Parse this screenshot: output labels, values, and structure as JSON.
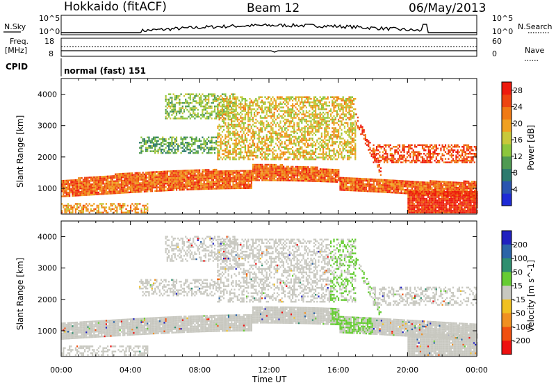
{
  "header": {
    "title_left": "Hokkaido (fitACF)",
    "title_center": "Beam 12",
    "title_right": "06/May/2013"
  },
  "top_panels": {
    "nsky_label": "N.Sky",
    "nsky_ticks": [
      "10^5",
      "10^0"
    ],
    "nsearch_label": "N.Search",
    "nsearch_ticks": [
      "10^5",
      "10^0"
    ],
    "freq_label": "Freq.",
    "freq_unit": "[MHz]",
    "freq_ticks": [
      "18",
      "8"
    ],
    "nave_label": "Nave",
    "nave_ticks": [
      "60",
      "0"
    ],
    "cpid_label": "CPID",
    "cpid_text": "normal (fast) 151"
  },
  "chart_data": [
    {
      "type": "heatmap",
      "name": "power",
      "ylabel": "Slant Range [km]",
      "xlabel": "Time UT",
      "x_ticks": [
        "00:00",
        "04:00",
        "08:00",
        "12:00",
        "16:00",
        "20:00",
        "00:00"
      ],
      "xlim_hours": [
        0,
        24
      ],
      "y_ticks": [
        1000,
        2000,
        3000,
        4000
      ],
      "ylim_km": [
        180,
        4500
      ],
      "colorbar": {
        "label": "Power [dB]",
        "ticks": [
          4,
          8,
          12,
          16,
          20,
          24,
          28
        ],
        "range": [
          0,
          30
        ],
        "colors": [
          "#1e2bd6",
          "#2a55b0",
          "#2d7a6e",
          "#4f9a52",
          "#8cc63c",
          "#c8c83a",
          "#f0a020",
          "#f07a14",
          "#ee4410",
          "#ee1a0e"
        ]
      },
      "bands": [
        {
          "t0": 0,
          "t1": 24,
          "r0": 800,
          "r1": 1500,
          "level": 0.82,
          "trend": "main"
        },
        {
          "t0": 6,
          "t1": 10,
          "r0": 3200,
          "r1": 4000,
          "level": 0.45,
          "trend": "upper"
        },
        {
          "t0": 4.5,
          "t1": 9,
          "r0": 2100,
          "r1": 2600,
          "level": 0.35,
          "trend": "mid"
        },
        {
          "t0": 9,
          "t1": 17,
          "r0": 1900,
          "r1": 3900,
          "level": 0.6,
          "trend": "scatter"
        },
        {
          "t0": 17,
          "t1": 18.5,
          "r0": 1300,
          "r1": 3000,
          "level": 0.9,
          "trend": "arc"
        },
        {
          "t0": 18,
          "t1": 24,
          "r0": 1800,
          "r1": 2400,
          "level": 0.88,
          "trend": "upper-right"
        },
        {
          "t0": 20,
          "t1": 24,
          "r0": 200,
          "r1": 900,
          "level": 0.95,
          "trend": "low"
        },
        {
          "t0": 0,
          "t1": 5,
          "r0": 200,
          "r1": 500,
          "level": 0.7,
          "trend": "ground"
        }
      ]
    },
    {
      "type": "heatmap",
      "name": "velocity",
      "ylabel": "Slant Range [km]",
      "xlabel": "Time UT",
      "x_ticks": [
        "00:00",
        "04:00",
        "08:00",
        "12:00",
        "16:00",
        "20:00",
        "00:00"
      ],
      "xlim_hours": [
        0,
        24
      ],
      "y_ticks": [
        1000,
        2000,
        3000,
        4000
      ],
      "ylim_km": [
        180,
        4500
      ],
      "colorbar": {
        "label": "Velocity [m s^-1]",
        "ticks": [
          200,
          100,
          50,
          15,
          -15,
          -50,
          -100,
          -200
        ],
        "colors": [
          "#2020c0",
          "#2c64a8",
          "#2f8f6f",
          "#66cc33",
          "#c8c8c0",
          "#f0c020",
          "#f09020",
          "#f05010",
          "#ee1010"
        ]
      }
    }
  ]
}
